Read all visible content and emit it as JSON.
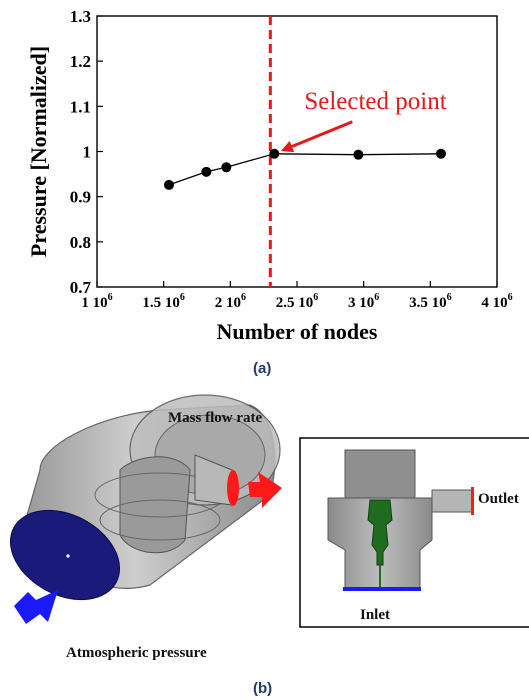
{
  "chart_data": {
    "type": "scatter",
    "xlabel": "Number of nodes",
    "ylabel": "Pressure [Normalized]",
    "xlim": [
      1000000,
      4000000
    ],
    "ylim": [
      0.7,
      1.3
    ],
    "x_ticks": [
      {
        "value": 1000000,
        "mant": "1 10",
        "exp": "6"
      },
      {
        "value": 1500000,
        "mant": "1.5 10",
        "exp": "6"
      },
      {
        "value": 2000000,
        "mant": "2 10",
        "exp": "6"
      },
      {
        "value": 2500000,
        "mant": "2.5 10",
        "exp": "6"
      },
      {
        "value": 3000000,
        "mant": "3 10",
        "exp": "6"
      },
      {
        "value": 3500000,
        "mant": "3.5 10",
        "exp": "6"
      },
      {
        "value": 4000000,
        "mant": "4 10",
        "exp": "6"
      }
    ],
    "y_ticks": [
      {
        "value": 0.7,
        "label": "0.7"
      },
      {
        "value": 0.8,
        "label": "0.8"
      },
      {
        "value": 0.9,
        "label": "0.9"
      },
      {
        "value": 1.0,
        "label": "1"
      },
      {
        "value": 1.1,
        "label": "1.1"
      },
      {
        "value": 1.2,
        "label": "1.2"
      },
      {
        "value": 1.3,
        "label": "1.3"
      }
    ],
    "series": [
      {
        "x": [
          1540000,
          1820000,
          1970000,
          2330000,
          2960000,
          3580000
        ],
        "y": [
          0.926,
          0.955,
          0.965,
          0.995,
          0.993,
          0.995
        ],
        "color": "#000000"
      }
    ],
    "reference_line": {
      "x": 2300000,
      "color": "#e31a1c"
    },
    "annotation": {
      "text": "Selected point",
      "x": 2330000,
      "y": 0.995,
      "color": "#e31a1c"
    },
    "grid": false
  },
  "labels": {
    "panel_a": "(a)",
    "panel_b": "(b)",
    "mass_flow_rate": "Mass flow rate",
    "outlet": "Outlet",
    "inlet": "Inlet",
    "atmospheric_pressure": "Atmospheric pressure"
  },
  "colors": {
    "arrow_red": "#ff1a1a",
    "arrow_blue": "#1a1aff",
    "inlet_disk": "#1a1a7a",
    "inlet_green": "#1f6b1f",
    "housing_gray": "#9a9a9a"
  }
}
